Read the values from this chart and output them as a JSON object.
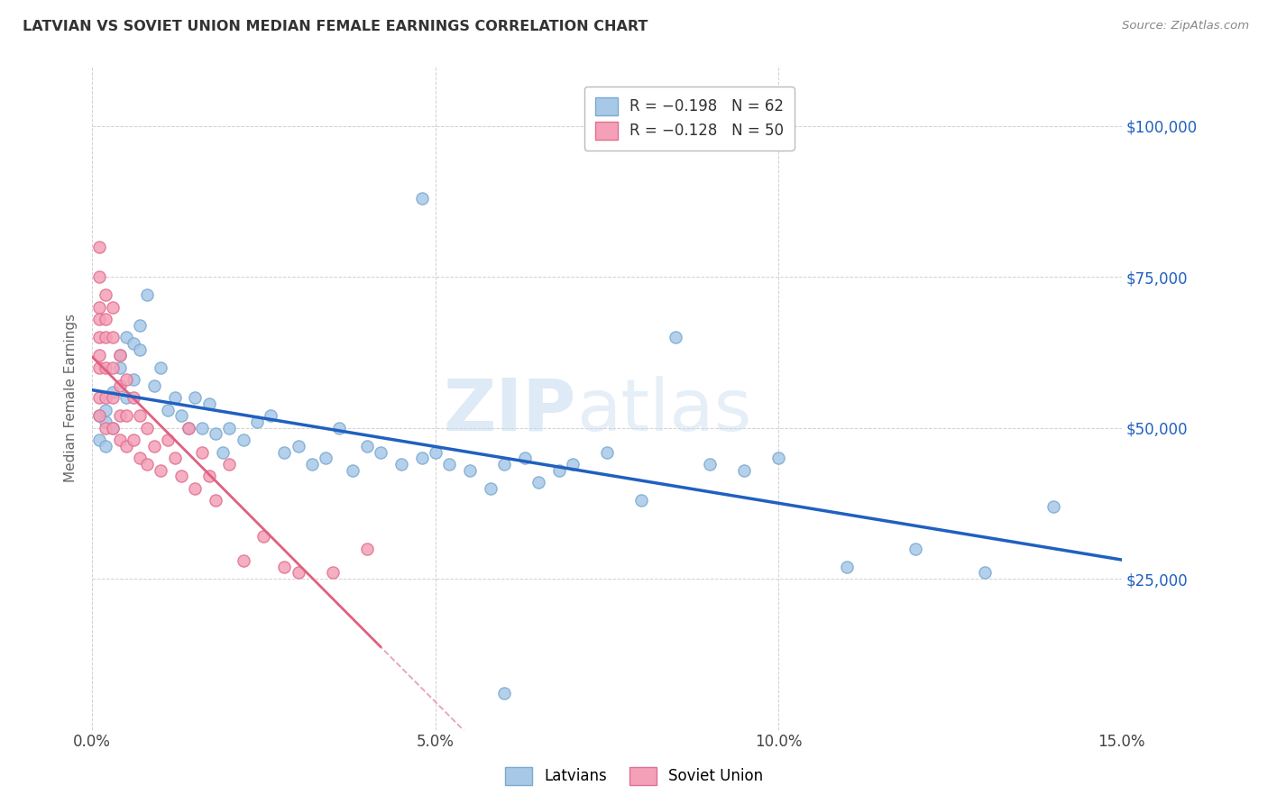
{
  "title": "LATVIAN VS SOVIET UNION MEDIAN FEMALE EARNINGS CORRELATION CHART",
  "source": "Source: ZipAtlas.com",
  "ylabel": "Median Female Earnings",
  "xlim": [
    0.0,
    0.15
  ],
  "ylim": [
    0,
    110000
  ],
  "yticks": [
    0,
    25000,
    50000,
    75000,
    100000
  ],
  "xticks": [
    0.0,
    0.05,
    0.1,
    0.15
  ],
  "xtick_labels": [
    "0.0%",
    "5.0%",
    "10.0%",
    "15.0%"
  ],
  "watermark_zip": "ZIP",
  "watermark_atlas": "atlas",
  "r_latvian": -0.198,
  "n_latvian": 62,
  "r_soviet": -0.128,
  "n_soviet": 50,
  "blue_scatter_color": "#a8c8e8",
  "blue_edge_color": "#7aaad0",
  "pink_scatter_color": "#f4a0b8",
  "pink_edge_color": "#e07090",
  "blue_line_color": "#2060c0",
  "pink_line_color": "#e06080",
  "pink_dash_color": "#e8a0b8",
  "title_color": "#333333",
  "source_color": "#888888",
  "ylabel_color": "#666666",
  "right_tick_color": "#2060c0",
  "grid_color": "#cccccc",
  "legend_border_color": "#bbbbbb",
  "latvian_x": [
    0.001,
    0.001,
    0.002,
    0.002,
    0.002,
    0.003,
    0.003,
    0.004,
    0.004,
    0.005,
    0.005,
    0.006,
    0.006,
    0.007,
    0.007,
    0.008,
    0.009,
    0.01,
    0.011,
    0.012,
    0.013,
    0.014,
    0.015,
    0.016,
    0.017,
    0.018,
    0.019,
    0.02,
    0.022,
    0.024,
    0.026,
    0.028,
    0.03,
    0.032,
    0.034,
    0.036,
    0.038,
    0.04,
    0.042,
    0.045,
    0.048,
    0.05,
    0.052,
    0.055,
    0.058,
    0.06,
    0.063,
    0.065,
    0.068,
    0.07,
    0.075,
    0.08,
    0.085,
    0.09,
    0.095,
    0.1,
    0.11,
    0.12,
    0.13,
    0.14,
    0.048,
    0.06
  ],
  "latvian_y": [
    52000,
    48000,
    51000,
    53000,
    47000,
    56000,
    50000,
    60000,
    62000,
    65000,
    55000,
    64000,
    58000,
    63000,
    67000,
    72000,
    57000,
    60000,
    53000,
    55000,
    52000,
    50000,
    55000,
    50000,
    54000,
    49000,
    46000,
    50000,
    48000,
    51000,
    52000,
    46000,
    47000,
    44000,
    45000,
    50000,
    43000,
    47000,
    46000,
    44000,
    45000,
    46000,
    44000,
    43000,
    40000,
    44000,
    45000,
    41000,
    43000,
    44000,
    46000,
    38000,
    65000,
    44000,
    43000,
    45000,
    27000,
    30000,
    26000,
    37000,
    88000,
    6000
  ],
  "soviet_x": [
    0.001,
    0.001,
    0.001,
    0.001,
    0.001,
    0.001,
    0.001,
    0.001,
    0.001,
    0.002,
    0.002,
    0.002,
    0.002,
    0.002,
    0.002,
    0.003,
    0.003,
    0.003,
    0.003,
    0.003,
    0.004,
    0.004,
    0.004,
    0.004,
    0.005,
    0.005,
    0.005,
    0.006,
    0.006,
    0.007,
    0.007,
    0.008,
    0.008,
    0.009,
    0.01,
    0.011,
    0.012,
    0.013,
    0.014,
    0.015,
    0.016,
    0.017,
    0.018,
    0.02,
    0.022,
    0.025,
    0.028,
    0.03,
    0.035,
    0.04
  ],
  "soviet_y": [
    80000,
    75000,
    70000,
    68000,
    65000,
    62000,
    60000,
    55000,
    52000,
    72000,
    68000,
    65000,
    60000,
    55000,
    50000,
    70000,
    65000,
    60000,
    55000,
    50000,
    62000,
    57000,
    52000,
    48000,
    58000,
    52000,
    47000,
    55000,
    48000,
    52000,
    45000,
    50000,
    44000,
    47000,
    43000,
    48000,
    45000,
    42000,
    50000,
    40000,
    46000,
    42000,
    38000,
    44000,
    28000,
    32000,
    27000,
    26000,
    26000,
    30000
  ]
}
